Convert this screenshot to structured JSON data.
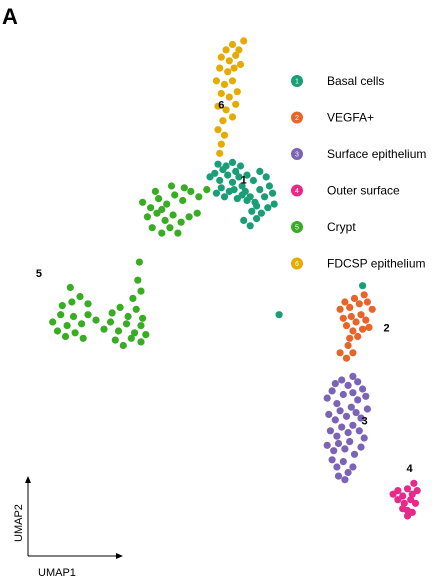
{
  "panel_label": "A",
  "chart_data": {
    "type": "scatter",
    "xlabel": "UMAP1",
    "ylabel": "UMAP2",
    "grid": false,
    "legend_position": "top-right",
    "series": [
      {
        "id": "1",
        "name": "Basal cells",
        "color": "#1a9e77",
        "centroid": [
          6.2,
          7.6
        ],
        "points": [
          [
            5.15,
            7.95
          ],
          [
            5.3,
            8.05
          ],
          [
            5.45,
            7.85
          ],
          [
            5.55,
            8.15
          ],
          [
            5.7,
            8.0
          ],
          [
            5.85,
            7.8
          ],
          [
            5.95,
            8.1
          ],
          [
            6.05,
            7.95
          ],
          [
            6.15,
            7.7
          ],
          [
            6.25,
            7.55
          ],
          [
            6.4,
            7.4
          ],
          [
            6.55,
            7.25
          ],
          [
            6.7,
            7.6
          ],
          [
            6.85,
            7.4
          ],
          [
            7.0,
            7.7
          ],
          [
            7.1,
            7.5
          ],
          [
            6.95,
            7.1
          ],
          [
            6.75,
            6.95
          ],
          [
            6.6,
            7.15
          ],
          [
            6.45,
            7.0
          ],
          [
            6.3,
            7.3
          ],
          [
            6.15,
            7.45
          ],
          [
            6.0,
            7.35
          ],
          [
            5.9,
            7.6
          ],
          [
            5.75,
            7.55
          ],
          [
            5.6,
            7.4
          ],
          [
            5.5,
            7.65
          ],
          [
            5.35,
            7.5
          ],
          [
            5.85,
            8.35
          ],
          [
            6.1,
            8.25
          ],
          [
            6.3,
            8.0
          ],
          [
            6.5,
            7.85
          ],
          [
            6.7,
            8.1
          ],
          [
            6.9,
            7.95
          ],
          [
            7.15,
            7.2
          ],
          [
            6.6,
            6.8
          ],
          [
            6.4,
            6.6
          ],
          [
            6.2,
            6.75
          ],
          [
            5.65,
            8.25
          ],
          [
            5.4,
            8.3
          ]
        ]
      },
      {
        "id": "2",
        "name": "VEGFA+",
        "color": "#e8642a",
        "centroid": [
          9.9,
          3.85
        ],
        "points": [
          [
            9.2,
            4.3
          ],
          [
            9.35,
            4.5
          ],
          [
            9.5,
            4.35
          ],
          [
            9.65,
            4.6
          ],
          [
            9.8,
            4.45
          ],
          [
            9.95,
            4.7
          ],
          [
            10.05,
            4.5
          ],
          [
            10.2,
            4.3
          ],
          [
            9.55,
            4.1
          ],
          [
            9.7,
            3.95
          ],
          [
            9.85,
            4.15
          ],
          [
            10.0,
            4.0
          ],
          [
            9.4,
            3.85
          ],
          [
            9.6,
            3.7
          ],
          [
            9.75,
            3.55
          ],
          [
            9.9,
            3.75
          ],
          [
            10.1,
            3.8
          ],
          [
            9.3,
            4.05
          ],
          [
            9.5,
            3.5
          ],
          [
            9.45,
            3.3
          ],
          [
            9.2,
            3.1
          ],
          [
            9.4,
            2.95
          ],
          [
            9.6,
            3.1
          ]
        ]
      },
      {
        "id": "3",
        "name": "Surface epithelium",
        "color": "#7b63b5",
        "centroid": [
          9.65,
          1.4
        ],
        "points": [
          [
            8.8,
            1.85
          ],
          [
            8.95,
            2.05
          ],
          [
            9.1,
            1.7
          ],
          [
            9.3,
            1.95
          ],
          [
            9.45,
            2.2
          ],
          [
            9.6,
            2.0
          ],
          [
            9.75,
            1.8
          ],
          [
            9.9,
            2.1
          ],
          [
            10.0,
            1.9
          ],
          [
            8.85,
            1.4
          ],
          [
            9.05,
            1.25
          ],
          [
            9.2,
            1.5
          ],
          [
            9.4,
            1.35
          ],
          [
            9.55,
            1.6
          ],
          [
            9.7,
            1.45
          ],
          [
            9.85,
            1.3
          ],
          [
            10.05,
            1.55
          ],
          [
            8.9,
            0.95
          ],
          [
            9.1,
            0.8
          ],
          [
            9.25,
            1.05
          ],
          [
            9.45,
            0.9
          ],
          [
            9.6,
            1.1
          ],
          [
            9.8,
            0.95
          ],
          [
            9.95,
            0.75
          ],
          [
            8.8,
            0.55
          ],
          [
            9.0,
            0.4
          ],
          [
            9.15,
            0.6
          ],
          [
            9.35,
            0.45
          ],
          [
            9.5,
            0.65
          ],
          [
            9.65,
            0.3
          ],
          [
            9.85,
            0.5
          ],
          [
            8.95,
            0.15
          ],
          [
            9.1,
            -0.05
          ],
          [
            9.3,
            0.1
          ],
          [
            9.45,
            -0.2
          ],
          [
            9.6,
            -0.05
          ],
          [
            9.25,
            2.35
          ],
          [
            9.6,
            2.45
          ],
          [
            9.05,
            2.25
          ],
          [
            9.75,
            2.3
          ],
          [
            9.35,
            -0.4
          ],
          [
            9.15,
            -0.3
          ]
        ]
      },
      {
        "id": "4",
        "name": "Outer surface",
        "color": "#e7298a",
        "centroid": [
          11.3,
          -0.9
        ],
        "points": [
          [
            10.85,
            -0.8
          ],
          [
            11.0,
            -0.7
          ],
          [
            11.15,
            -0.85
          ],
          [
            11.3,
            -0.65
          ],
          [
            11.45,
            -0.8
          ],
          [
            11.6,
            -0.7
          ],
          [
            11.0,
            -0.95
          ],
          [
            11.2,
            -1.05
          ],
          [
            11.4,
            -0.95
          ],
          [
            11.55,
            -1.05
          ],
          [
            11.3,
            -1.25
          ],
          [
            11.15,
            -1.2
          ],
          [
            11.45,
            -1.3
          ],
          [
            11.3,
            -1.4
          ],
          [
            11.5,
            -0.5
          ]
        ]
      },
      {
        "id": "5",
        "name": "Crypt",
        "color": "#38ac23",
        "centroid": [
          2.25,
          5.8
        ],
        "points": [
          [
            3.05,
            7.25
          ],
          [
            3.3,
            7.1
          ],
          [
            3.55,
            7.35
          ],
          [
            3.8,
            7.2
          ],
          [
            4.05,
            7.45
          ],
          [
            4.3,
            7.3
          ],
          [
            4.55,
            7.55
          ],
          [
            4.8,
            7.4
          ],
          [
            5.05,
            7.6
          ],
          [
            3.2,
            6.85
          ],
          [
            3.5,
            6.95
          ],
          [
            3.75,
            6.75
          ],
          [
            4.0,
            6.9
          ],
          [
            4.25,
            6.7
          ],
          [
            4.5,
            6.85
          ],
          [
            4.75,
            6.95
          ],
          [
            3.35,
            6.55
          ],
          [
            3.65,
            6.4
          ],
          [
            3.9,
            6.55
          ],
          [
            4.15,
            6.4
          ],
          [
            3.45,
            7.55
          ],
          [
            3.95,
            7.7
          ],
          [
            4.35,
            7.65
          ],
          [
            3.65,
            7.05
          ],
          [
            0.25,
            3.95
          ],
          [
            0.5,
            4.15
          ],
          [
            0.7,
            3.85
          ],
          [
            0.9,
            4.1
          ],
          [
            1.15,
            3.9
          ],
          [
            1.35,
            4.15
          ],
          [
            0.4,
            3.7
          ],
          [
            0.65,
            3.55
          ],
          [
            0.95,
            3.65
          ],
          [
            1.2,
            3.5
          ],
          [
            0.55,
            4.4
          ],
          [
            0.85,
            4.5
          ],
          [
            1.1,
            4.65
          ],
          [
            1.35,
            4.45
          ],
          [
            0.8,
            4.9
          ],
          [
            1.6,
            4.0
          ],
          [
            1.85,
            3.75
          ],
          [
            2.05,
            3.95
          ],
          [
            2.3,
            3.7
          ],
          [
            2.55,
            3.9
          ],
          [
            2.8,
            3.65
          ],
          [
            3.0,
            3.85
          ],
          [
            2.2,
            3.45
          ],
          [
            2.45,
            3.3
          ],
          [
            2.7,
            3.5
          ],
          [
            3.0,
            3.4
          ],
          [
            3.15,
            3.6
          ],
          [
            2.6,
            4.1
          ],
          [
            2.85,
            4.3
          ],
          [
            3.05,
            4.05
          ],
          [
            2.75,
            4.6
          ],
          [
            3.0,
            4.8
          ],
          [
            2.9,
            5.1
          ],
          [
            2.95,
            5.6
          ],
          [
            2.1,
            4.2
          ],
          [
            2.35,
            4.35
          ]
        ]
      },
      {
        "id": "6",
        "name": "FDCSP epithelium",
        "color": "#e6ab02",
        "centroid": [
          5.5,
          10.05
        ],
        "points": [
          [
            5.65,
            11.45
          ],
          [
            5.85,
            11.6
          ],
          [
            6.05,
            11.45
          ],
          [
            5.5,
            11.25
          ],
          [
            5.75,
            11.15
          ],
          [
            5.95,
            11.3
          ],
          [
            5.45,
            10.95
          ],
          [
            5.7,
            10.85
          ],
          [
            5.9,
            10.95
          ],
          [
            6.1,
            11.05
          ],
          [
            5.35,
            10.6
          ],
          [
            5.6,
            10.5
          ],
          [
            5.85,
            10.6
          ],
          [
            6.0,
            10.3
          ],
          [
            5.5,
            10.25
          ],
          [
            5.75,
            10.15
          ],
          [
            5.95,
            9.95
          ],
          [
            5.4,
            9.9
          ],
          [
            5.65,
            9.8
          ],
          [
            5.85,
            9.6
          ],
          [
            5.55,
            9.5
          ],
          [
            5.4,
            9.25
          ],
          [
            5.6,
            9.1
          ],
          [
            5.5,
            8.85
          ],
          [
            5.45,
            8.6
          ],
          [
            6.2,
            11.7
          ]
        ]
      }
    ],
    "stray_points": [
      {
        "series": "1",
        "x": 7.3,
        "y": 4.15
      },
      {
        "series": "1",
        "x": 9.9,
        "y": 4.95
      }
    ],
    "xlim": [
      -0.3,
      12.0
    ],
    "ylim": [
      -2.2,
      12.0
    ]
  }
}
